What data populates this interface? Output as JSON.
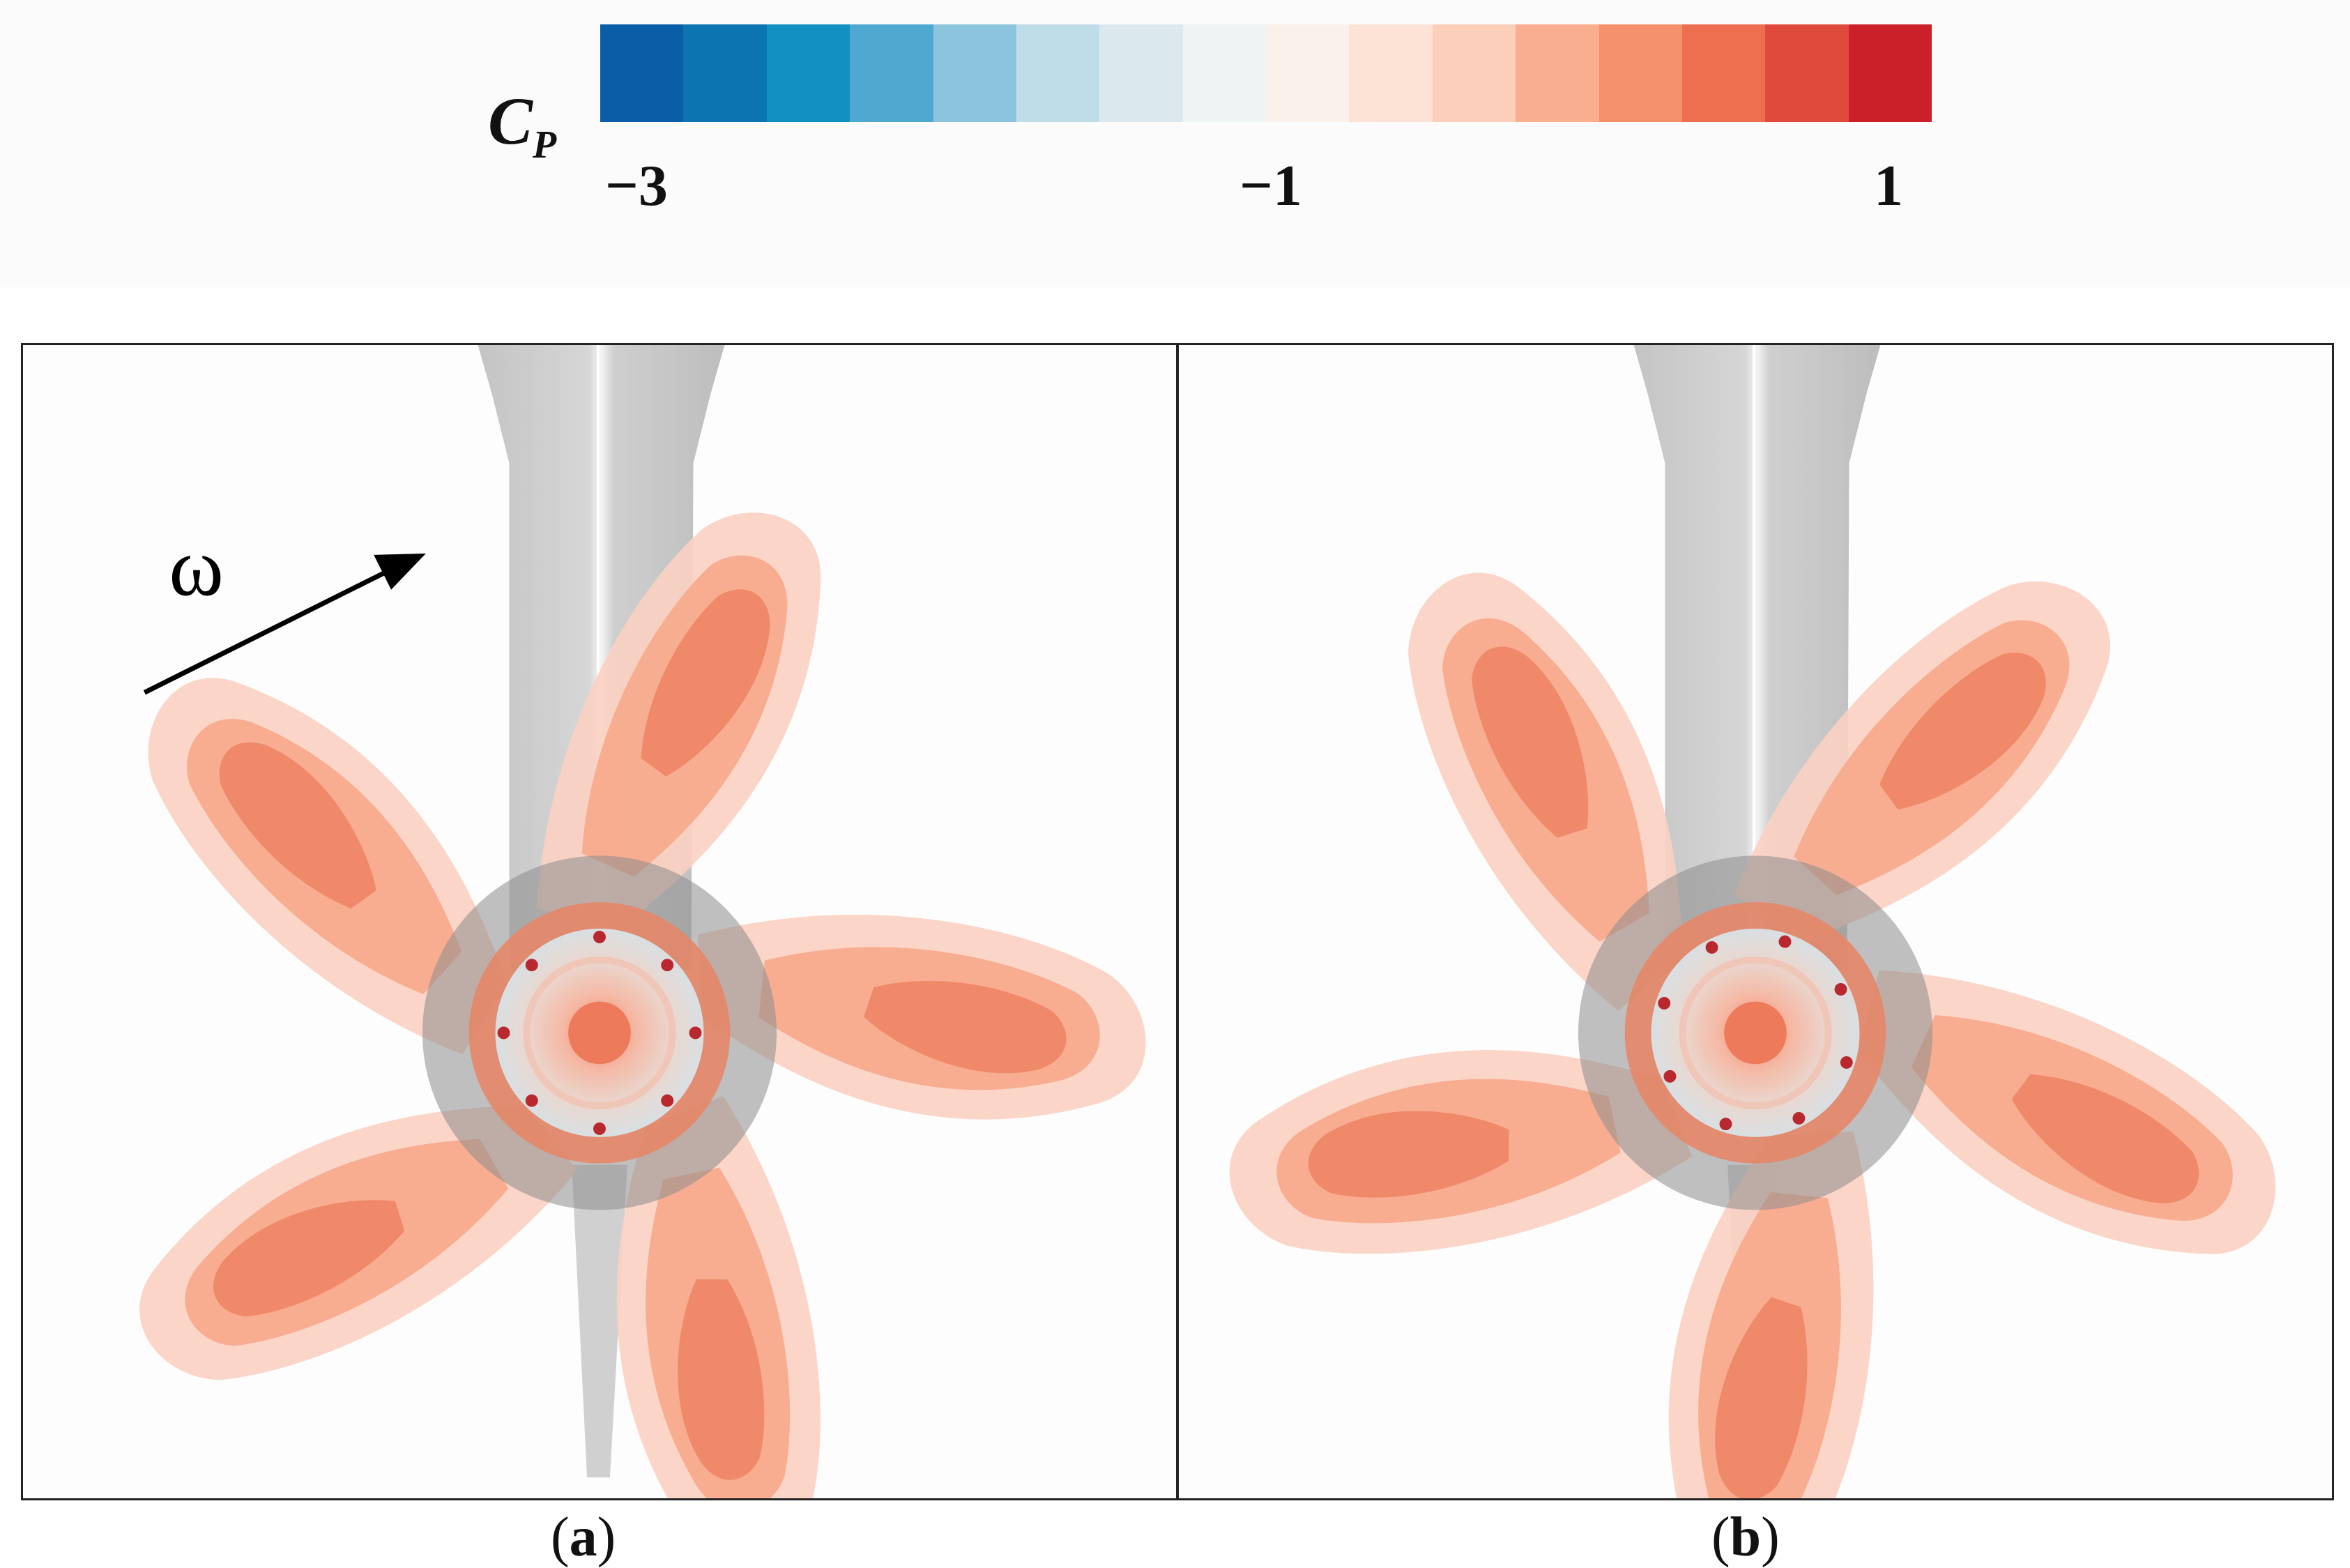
{
  "colorbar": {
    "label_main": "C",
    "label_sub": "P",
    "ticks": [
      "−3",
      "−1",
      "1"
    ],
    "colors": [
      "#0a5ea8",
      "#0c74b0",
      "#1290c2",
      "#4fa8cf",
      "#8cc4de",
      "#bfdde9",
      "#dbe9ef",
      "#eef3f3",
      "#fbf1ec",
      "#fde2d6",
      "#fccfba",
      "#f9ae8f",
      "#f5906d",
      "#ee6e50",
      "#e04a3c",
      "#cb2029"
    ]
  },
  "panels": [
    {
      "id": "a",
      "rotation_label": "ω",
      "caption_letter": "a",
      "blade_rotation": 0
    },
    {
      "id": "b",
      "rotation_label": "",
      "caption_letter": "b",
      "blade_rotation": 18
    }
  ]
}
